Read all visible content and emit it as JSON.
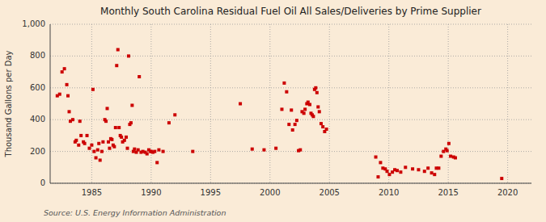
{
  "chart_data": {
    "type": "scatter",
    "title": "Monthly South Carolina Residual Fuel Oil All Sales/Deliveries by Prime Supplier",
    "ylabel": "Thousand Gallons per Day",
    "annotation": "Source: U.S. Energy Information Administration",
    "color": "#cc0000",
    "marker": "square",
    "grid": true,
    "xlim": [
      1981.5,
      2022
    ],
    "ylim": [
      0,
      1000
    ],
    "xticks": [
      1985,
      1990,
      1995,
      2000,
      2005,
      2010,
      2015,
      2020
    ],
    "yticks": [
      0,
      200,
      400,
      600,
      800,
      {
        "value": 1000,
        "label": "1,000"
      }
    ],
    "x": [
      1982.1,
      1982.3,
      1982.5,
      1982.7,
      1982.9,
      1983.0,
      1983.1,
      1983.2,
      1983.4,
      1983.6,
      1983.7,
      1983.9,
      1984.0,
      1984.1,
      1984.3,
      1984.4,
      1984.6,
      1984.8,
      1985.0,
      1985.1,
      1985.2,
      1985.35,
      1985.5,
      1985.6,
      1985.7,
      1985.85,
      1985.95,
      1986.1,
      1986.2,
      1986.3,
      1986.4,
      1986.5,
      1986.6,
      1986.7,
      1986.8,
      1986.9,
      1987.0,
      1987.1,
      1987.2,
      1987.3,
      1987.4,
      1987.5,
      1987.6,
      1987.75,
      1987.9,
      1988.0,
      1988.1,
      1988.2,
      1988.3,
      1988.4,
      1988.5,
      1988.6,
      1988.75,
      1988.9,
      1989.0,
      1989.15,
      1989.3,
      1989.5,
      1989.65,
      1989.8,
      1989.95,
      1990.0,
      1990.15,
      1990.3,
      1990.5,
      1990.65,
      1991.0,
      1991.5,
      1992.0,
      1993.5,
      1997.5,
      1998.5,
      1999.5,
      2000.5,
      2001.0,
      2001.2,
      2001.4,
      2001.6,
      2001.8,
      2001.9,
      2002.1,
      2002.25,
      2002.4,
      2002.55,
      2002.7,
      2002.85,
      2002.95,
      2003.1,
      2003.2,
      2003.35,
      2003.45,
      2003.55,
      2003.65,
      2003.75,
      2003.85,
      2003.95,
      2004.05,
      2004.15,
      2004.3,
      2004.45,
      2004.6,
      2004.75,
      2008.9,
      2009.1,
      2009.3,
      2009.5,
      2009.7,
      2009.85,
      2010.05,
      2010.3,
      2010.5,
      2010.7,
      2011.0,
      2011.4,
      2012.0,
      2012.5,
      2013.0,
      2013.3,
      2013.6,
      2013.85,
      2014.0,
      2014.2,
      2014.4,
      2014.6,
      2014.8,
      2014.9,
      2015.05,
      2015.2,
      2015.45,
      2015.6,
      2019.5
    ],
    "values": [
      550,
      560,
      700,
      720,
      620,
      550,
      450,
      390,
      400,
      260,
      270,
      240,
      390,
      300,
      260,
      250,
      300,
      220,
      240,
      590,
      200,
      160,
      210,
      250,
      145,
      200,
      260,
      400,
      390,
      470,
      260,
      220,
      280,
      275,
      240,
      230,
      350,
      740,
      840,
      350,
      300,
      290,
      260,
      270,
      290,
      220,
      800,
      370,
      380,
      490,
      200,
      215,
      195,
      210,
      670,
      195,
      200,
      195,
      185,
      210,
      200,
      200,
      195,
      200,
      130,
      210,
      200,
      380,
      430,
      200,
      500,
      215,
      210,
      220,
      465,
      630,
      575,
      370,
      460,
      335,
      370,
      395,
      205,
      210,
      450,
      440,
      465,
      500,
      510,
      495,
      440,
      430,
      420,
      590,
      600,
      570,
      480,
      450,
      375,
      355,
      325,
      340,
      165,
      40,
      130,
      95,
      90,
      75,
      55,
      70,
      85,
      80,
      70,
      100,
      90,
      85,
      75,
      95,
      65,
      55,
      95,
      95,
      170,
      200,
      215,
      205,
      250,
      170,
      165,
      160,
      30
    ]
  }
}
